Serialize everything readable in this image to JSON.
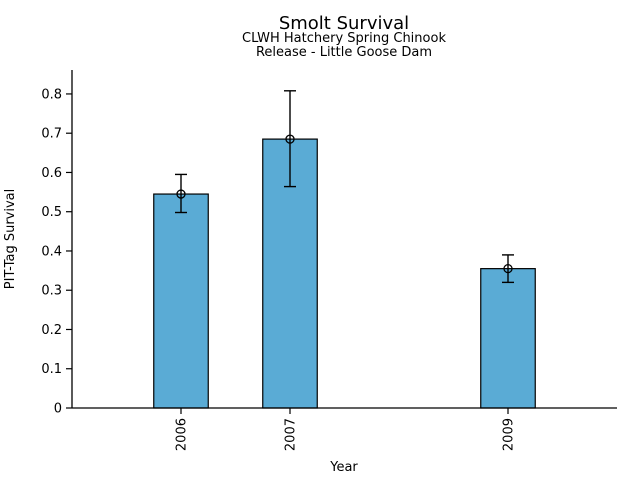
{
  "chart_data": {
    "type": "bar",
    "title": "Smolt Survival",
    "subtitle1": "CLWH Hatchery Spring Chinook",
    "subtitle2": "Release - Little Goose Dam",
    "xlabel": "Year",
    "ylabel": "PIT-Tag Survival",
    "categories": [
      "2006",
      "2007",
      "2009"
    ],
    "x_years": [
      2006,
      2007,
      2009
    ],
    "values": [
      0.545,
      0.685,
      0.355
    ],
    "error_low": [
      0.498,
      0.564,
      0.32
    ],
    "error_high": [
      0.595,
      0.808,
      0.39
    ],
    "ytick_labels": [
      "0",
      "0.1",
      "0.2",
      "0.3",
      "0.4",
      "0.5",
      "0.6",
      "0.7",
      "0.8"
    ],
    "ytick_values": [
      0,
      0.1,
      0.2,
      0.3,
      0.4,
      0.5,
      0.6,
      0.7,
      0.8
    ],
    "xlim": [
      2005,
      2010
    ],
    "ylim": [
      0,
      0.861
    ],
    "bar_width_years": 0.5,
    "xtick_rotation_deg": 90,
    "grid": false,
    "legend": null,
    "marker": "open-circle",
    "colors": {
      "bar_fill": "#5AABD5",
      "bar_edge": "#000000",
      "error_bar": "#000000",
      "axis": "#000000",
      "text": "#000000",
      "background": "#ffffff"
    }
  }
}
